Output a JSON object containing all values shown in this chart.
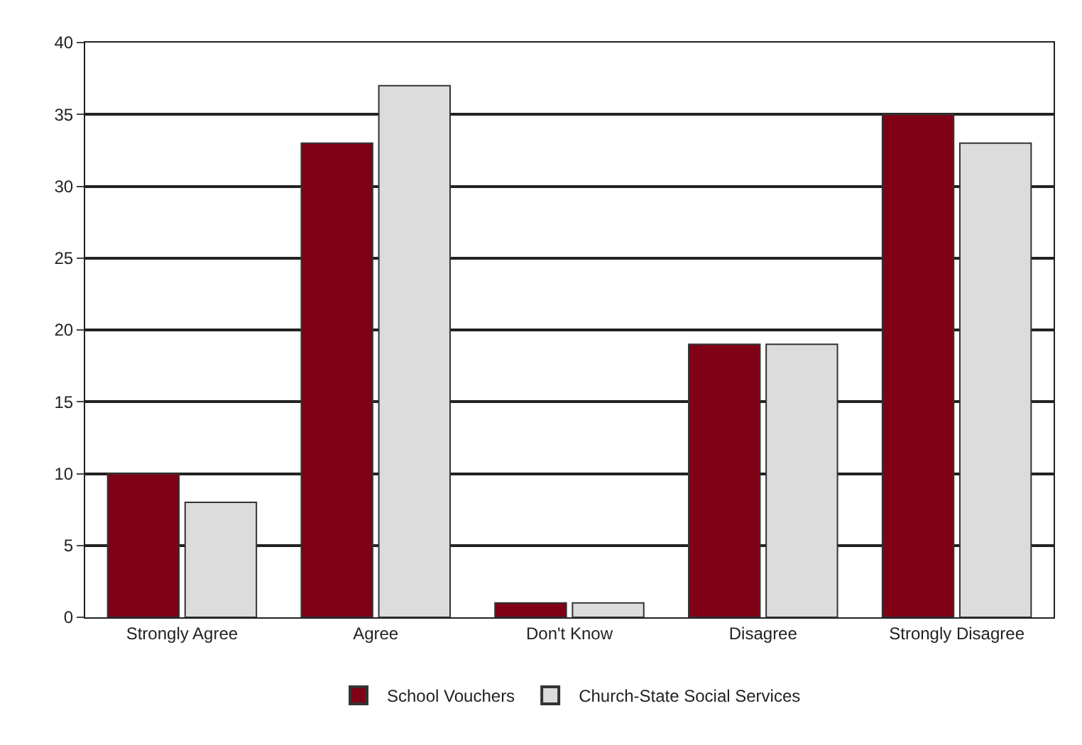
{
  "chart_data": {
    "type": "bar",
    "categories": [
      "Strongly Agree",
      "Agree",
      "Don't Know",
      "Disagree",
      "Strongly Disagree"
    ],
    "series": [
      {
        "name": "School Vouchers",
        "color": "#800016",
        "values": [
          10,
          33,
          1,
          19,
          35
        ]
      },
      {
        "name": "Church-State Social Services",
        "color": "#dcdcdc",
        "values": [
          8,
          37,
          1,
          19,
          33
        ]
      }
    ],
    "ylim": [
      0,
      40
    ],
    "yticks": [
      0,
      5,
      10,
      15,
      20,
      25,
      30,
      35,
      40
    ],
    "grid": "y",
    "legend": "bottom"
  }
}
